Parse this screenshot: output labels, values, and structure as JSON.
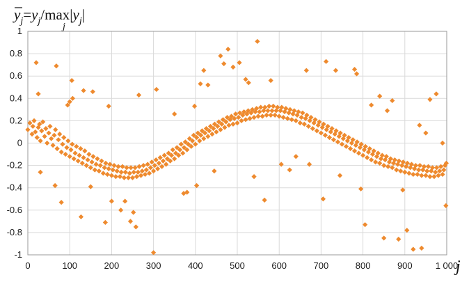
{
  "chart_data": {
    "type": "scatter",
    "title": "",
    "ylabel": "ȳ_j = y_j / max|y_j|  (max over j)",
    "ylabel_parts": {
      "ybar": "y",
      "sub_j": "j",
      "eq": "=",
      "y": "y",
      "slash": "/",
      "max": "max",
      "bar": "|",
      "y2": "y",
      "bar2": "|"
    },
    "xlabel": "j",
    "xlim": [
      0,
      1000
    ],
    "ylim": [
      -1,
      1
    ],
    "x_ticks": [
      0,
      100,
      200,
      300,
      400,
      500,
      600,
      700,
      800,
      900,
      1000
    ],
    "x_tick_labels": [
      "0",
      "100",
      "200",
      "300",
      "400",
      "500",
      "600",
      "700",
      "800",
      "900",
      "1 000"
    ],
    "y_ticks": [
      1,
      0.8,
      0.6,
      0.4,
      0.2,
      0,
      -0.2,
      -0.4,
      -0.6,
      -0.8,
      -1
    ],
    "y_tick_labels": [
      "1",
      "0.8",
      "0.6",
      "0.4",
      "0.2",
      "0",
      "-0.2",
      "-0.4",
      "-0.6",
      "-0.8",
      "-1"
    ],
    "grid": true,
    "marker": "diamond",
    "colors": {
      "marker": "#EE8A2E",
      "grid": "#d9d9d9",
      "frame": "#9a9a9a"
    },
    "points": [
      [
        0,
        0.12
      ],
      [
        5,
        0.18
      ],
      [
        10,
        0.08
      ],
      [
        12,
        0.15
      ],
      [
        15,
        0.2
      ],
      [
        18,
        0.1
      ],
      [
        22,
        0.05
      ],
      [
        25,
        0.14
      ],
      [
        28,
        0.17
      ],
      [
        30,
        0.02
      ],
      [
        33,
        0.11
      ],
      [
        36,
        0.19
      ],
      [
        40,
        0.06
      ],
      [
        43,
        0.13
      ],
      [
        46,
        0.0
      ],
      [
        50,
        0.09
      ],
      [
        53,
        0.15
      ],
      [
        56,
        0.04
      ],
      [
        60,
        -0.02
      ],
      [
        63,
        0.07
      ],
      [
        66,
        0.12
      ],
      [
        70,
        -0.05
      ],
      [
        73,
        0.03
      ],
      [
        76,
        0.08
      ],
      [
        80,
        -0.08
      ],
      [
        83,
        -0.01
      ],
      [
        86,
        0.05
      ],
      [
        90,
        -0.1
      ],
      [
        93,
        -0.04
      ],
      [
        96,
        0.02
      ],
      [
        100,
        -0.12
      ],
      [
        103,
        -0.06
      ],
      [
        106,
        -0.01
      ],
      [
        110,
        -0.14
      ],
      [
        113,
        -0.09
      ],
      [
        116,
        -0.03
      ],
      [
        120,
        -0.16
      ],
      [
        123,
        -0.11
      ],
      [
        126,
        -0.05
      ],
      [
        130,
        -0.18
      ],
      [
        133,
        -0.13
      ],
      [
        136,
        -0.07
      ],
      [
        140,
        -0.2
      ],
      [
        143,
        -0.15
      ],
      [
        146,
        -0.1
      ],
      [
        150,
        -0.22
      ],
      [
        153,
        -0.17
      ],
      [
        156,
        -0.12
      ],
      [
        160,
        -0.24
      ],
      [
        163,
        -0.19
      ],
      [
        166,
        -0.14
      ],
      [
        170,
        -0.25
      ],
      [
        173,
        -0.2
      ],
      [
        176,
        -0.16
      ],
      [
        180,
        -0.27
      ],
      [
        183,
        -0.22
      ],
      [
        186,
        -0.18
      ],
      [
        190,
        -0.28
      ],
      [
        193,
        -0.23
      ],
      [
        196,
        -0.19
      ],
      [
        200,
        -0.29
      ],
      [
        203,
        -0.24
      ],
      [
        206,
        -0.2
      ],
      [
        210,
        -0.3
      ],
      [
        213,
        -0.25
      ],
      [
        216,
        -0.21
      ],
      [
        220,
        -0.3
      ],
      [
        223,
        -0.26
      ],
      [
        226,
        -0.21
      ],
      [
        230,
        -0.31
      ],
      [
        233,
        -0.26
      ],
      [
        236,
        -0.22
      ],
      [
        240,
        -0.31
      ],
      [
        243,
        -0.27
      ],
      [
        246,
        -0.22
      ],
      [
        250,
        -0.31
      ],
      [
        253,
        -0.26
      ],
      [
        256,
        -0.22
      ],
      [
        260,
        -0.3
      ],
      [
        263,
        -0.26
      ],
      [
        266,
        -0.21
      ],
      [
        270,
        -0.29
      ],
      [
        273,
        -0.25
      ],
      [
        276,
        -0.2
      ],
      [
        280,
        -0.28
      ],
      [
        283,
        -0.24
      ],
      [
        286,
        -0.19
      ],
      [
        290,
        -0.27
      ],
      [
        293,
        -0.22
      ],
      [
        296,
        -0.17
      ],
      [
        300,
        -0.25
      ],
      [
        303,
        -0.2
      ],
      [
        306,
        -0.15
      ],
      [
        310,
        -0.23
      ],
      [
        313,
        -0.18
      ],
      [
        316,
        -0.13
      ],
      [
        320,
        -0.21
      ],
      [
        323,
        -0.16
      ],
      [
        326,
        -0.11
      ],
      [
        330,
        -0.19
      ],
      [
        333,
        -0.14
      ],
      [
        336,
        -0.09
      ],
      [
        340,
        -0.16
      ],
      [
        343,
        -0.11
      ],
      [
        346,
        -0.06
      ],
      [
        350,
        -0.14
      ],
      [
        353,
        -0.09
      ],
      [
        356,
        -0.04
      ],
      [
        360,
        -0.11
      ],
      [
        363,
        -0.06
      ],
      [
        366,
        -0.01
      ],
      [
        370,
        -0.09
      ],
      [
        373,
        -0.04
      ],
      [
        376,
        0.01
      ],
      [
        380,
        -0.06
      ],
      [
        383,
        -0.01
      ],
      [
        386,
        0.04
      ],
      [
        390,
        -0.03
      ],
      [
        393,
        0.02
      ],
      [
        396,
        0.07
      ],
      [
        400,
        -0.01
      ],
      [
        403,
        0.05
      ],
      [
        406,
        0.09
      ],
      [
        410,
        0.02
      ],
      [
        413,
        0.07
      ],
      [
        416,
        0.11
      ],
      [
        420,
        0.04
      ],
      [
        423,
        0.09
      ],
      [
        426,
        0.13
      ],
      [
        430,
        0.06
      ],
      [
        433,
        0.11
      ],
      [
        436,
        0.15
      ],
      [
        440,
        0.08
      ],
      [
        443,
        0.13
      ],
      [
        446,
        0.17
      ],
      [
        450,
        0.1
      ],
      [
        453,
        0.15
      ],
      [
        456,
        0.19
      ],
      [
        460,
        0.12
      ],
      [
        463,
        0.17
      ],
      [
        466,
        0.21
      ],
      [
        470,
        0.14
      ],
      [
        473,
        0.19
      ],
      [
        476,
        0.23
      ],
      [
        480,
        0.16
      ],
      [
        483,
        0.21
      ],
      [
        486,
        0.24
      ],
      [
        490,
        0.17
      ],
      [
        493,
        0.22
      ],
      [
        496,
        0.26
      ],
      [
        500,
        0.18
      ],
      [
        503,
        0.23
      ],
      [
        506,
        0.27
      ],
      [
        510,
        0.2
      ],
      [
        513,
        0.25
      ],
      [
        516,
        0.28
      ],
      [
        520,
        0.21
      ],
      [
        523,
        0.26
      ],
      [
        526,
        0.29
      ],
      [
        530,
        0.22
      ],
      [
        533,
        0.27
      ],
      [
        536,
        0.3
      ],
      [
        540,
        0.23
      ],
      [
        543,
        0.28
      ],
      [
        546,
        0.31
      ],
      [
        550,
        0.24
      ],
      [
        553,
        0.28
      ],
      [
        556,
        0.32
      ],
      [
        560,
        0.24
      ],
      [
        563,
        0.29
      ],
      [
        566,
        0.32
      ],
      [
        570,
        0.25
      ],
      [
        573,
        0.29
      ],
      [
        576,
        0.33
      ],
      [
        580,
        0.25
      ],
      [
        583,
        0.29
      ],
      [
        586,
        0.33
      ],
      [
        590,
        0.25
      ],
      [
        593,
        0.29
      ],
      [
        596,
        0.32
      ],
      [
        600,
        0.24
      ],
      [
        603,
        0.29
      ],
      [
        606,
        0.32
      ],
      [
        610,
        0.23
      ],
      [
        613,
        0.28
      ],
      [
        616,
        0.31
      ],
      [
        620,
        0.22
      ],
      [
        623,
        0.27
      ],
      [
        626,
        0.3
      ],
      [
        630,
        0.21
      ],
      [
        633,
        0.26
      ],
      [
        636,
        0.29
      ],
      [
        640,
        0.2
      ],
      [
        643,
        0.25
      ],
      [
        646,
        0.28
      ],
      [
        650,
        0.18
      ],
      [
        653,
        0.23
      ],
      [
        656,
        0.27
      ],
      [
        660,
        0.17
      ],
      [
        663,
        0.22
      ],
      [
        666,
        0.25
      ],
      [
        670,
        0.15
      ],
      [
        673,
        0.2
      ],
      [
        676,
        0.23
      ],
      [
        680,
        0.13
      ],
      [
        683,
        0.18
      ],
      [
        686,
        0.21
      ],
      [
        690,
        0.11
      ],
      [
        693,
        0.16
      ],
      [
        696,
        0.19
      ],
      [
        700,
        0.09
      ],
      [
        703,
        0.14
      ],
      [
        706,
        0.17
      ],
      [
        710,
        0.07
      ],
      [
        713,
        0.12
      ],
      [
        716,
        0.15
      ],
      [
        720,
        0.05
      ],
      [
        723,
        0.1
      ],
      [
        726,
        0.13
      ],
      [
        730,
        0.03
      ],
      [
        733,
        0.08
      ],
      [
        736,
        0.11
      ],
      [
        740,
        0.01
      ],
      [
        743,
        0.06
      ],
      [
        746,
        0.09
      ],
      [
        750,
        -0.01
      ],
      [
        753,
        0.04
      ],
      [
        756,
        0.07
      ],
      [
        760,
        -0.03
      ],
      [
        763,
        0.02
      ],
      [
        766,
        0.05
      ],
      [
        770,
        -0.05
      ],
      [
        773,
        0.0
      ],
      [
        776,
        0.03
      ],
      [
        780,
        -0.07
      ],
      [
        783,
        -0.02
      ],
      [
        786,
        0.01
      ],
      [
        790,
        -0.09
      ],
      [
        793,
        -0.04
      ],
      [
        796,
        -0.01
      ],
      [
        800,
        -0.11
      ],
      [
        803,
        -0.06
      ],
      [
        806,
        -0.03
      ],
      [
        810,
        -0.13
      ],
      [
        813,
        -0.08
      ],
      [
        816,
        -0.05
      ],
      [
        820,
        -0.15
      ],
      [
        823,
        -0.1
      ],
      [
        826,
        -0.07
      ],
      [
        830,
        -0.17
      ],
      [
        833,
        -0.12
      ],
      [
        836,
        -0.09
      ],
      [
        840,
        -0.18
      ],
      [
        843,
        -0.14
      ],
      [
        846,
        -0.11
      ],
      [
        850,
        -0.2
      ],
      [
        853,
        -0.15
      ],
      [
        856,
        -0.12
      ],
      [
        860,
        -0.21
      ],
      [
        863,
        -0.17
      ],
      [
        866,
        -0.14
      ],
      [
        870,
        -0.22
      ],
      [
        873,
        -0.18
      ],
      [
        876,
        -0.15
      ],
      [
        880,
        -0.24
      ],
      [
        883,
        -0.19
      ],
      [
        886,
        -0.16
      ],
      [
        890,
        -0.25
      ],
      [
        893,
        -0.2
      ],
      [
        896,
        -0.17
      ],
      [
        900,
        -0.26
      ],
      [
        903,
        -0.21
      ],
      [
        906,
        -0.18
      ],
      [
        910,
        -0.27
      ],
      [
        913,
        -0.22
      ],
      [
        916,
        -0.19
      ],
      [
        920,
        -0.28
      ],
      [
        923,
        -0.23
      ],
      [
        926,
        -0.2
      ],
      [
        930,
        -0.28
      ],
      [
        933,
        -0.24
      ],
      [
        936,
        -0.2
      ],
      [
        940,
        -0.29
      ],
      [
        943,
        -0.24
      ],
      [
        946,
        -0.21
      ],
      [
        950,
        -0.29
      ],
      [
        953,
        -0.25
      ],
      [
        956,
        -0.21
      ],
      [
        960,
        -0.3
      ],
      [
        963,
        -0.25
      ],
      [
        966,
        -0.22
      ],
      [
        970,
        -0.3
      ],
      [
        973,
        -0.26
      ],
      [
        976,
        -0.22
      ],
      [
        980,
        -0.29
      ],
      [
        983,
        -0.25
      ],
      [
        986,
        -0.21
      ],
      [
        990,
        -0.28
      ],
      [
        993,
        -0.24
      ],
      [
        996,
        -0.2
      ],
      [
        999,
        -0.18
      ],
      [
        20,
        0.72
      ],
      [
        25,
        0.44
      ],
      [
        30,
        -0.26
      ],
      [
        68,
        0.69
      ],
      [
        65,
        -0.38
      ],
      [
        80,
        -0.53
      ],
      [
        95,
        0.34
      ],
      [
        100,
        0.37
      ],
      [
        105,
        0.56
      ],
      [
        107,
        0.4
      ],
      [
        127,
        -0.66
      ],
      [
        133,
        0.47
      ],
      [
        155,
        0.46
      ],
      [
        150,
        -0.39
      ],
      [
        185,
        -0.71
      ],
      [
        193,
        0.33
      ],
      [
        200,
        -0.52
      ],
      [
        222,
        -0.6
      ],
      [
        232,
        -0.52
      ],
      [
        245,
        -0.7
      ],
      [
        252,
        -0.62
      ],
      [
        258,
        -0.75
      ],
      [
        265,
        0.43
      ],
      [
        300,
        -0.98
      ],
      [
        307,
        0.48
      ],
      [
        350,
        0.26
      ],
      [
        372,
        -0.45
      ],
      [
        380,
        -0.44
      ],
      [
        398,
        0.33
      ],
      [
        403,
        -0.38
      ],
      [
        412,
        0.53
      ],
      [
        420,
        0.65
      ],
      [
        430,
        0.52
      ],
      [
        445,
        -0.25
      ],
      [
        460,
        0.78
      ],
      [
        468,
        0.71
      ],
      [
        478,
        0.84
      ],
      [
        490,
        0.68
      ],
      [
        505,
        0.72
      ],
      [
        520,
        0.57
      ],
      [
        527,
        0.54
      ],
      [
        540,
        -0.3
      ],
      [
        548,
        0.91
      ],
      [
        565,
        -0.51
      ],
      [
        580,
        0.56
      ],
      [
        605,
        -0.19
      ],
      [
        625,
        -0.24
      ],
      [
        640,
        -0.12
      ],
      [
        665,
        0.65
      ],
      [
        672,
        -0.19
      ],
      [
        705,
        -0.5
      ],
      [
        712,
        0.73
      ],
      [
        735,
        0.65
      ],
      [
        745,
        -0.29
      ],
      [
        780,
        0.66
      ],
      [
        785,
        0.62
      ],
      [
        795,
        -0.41
      ],
      [
        805,
        -0.73
      ],
      [
        820,
        0.34
      ],
      [
        840,
        0.42
      ],
      [
        850,
        -0.85
      ],
      [
        858,
        0.29
      ],
      [
        870,
        0.38
      ],
      [
        885,
        -0.86
      ],
      [
        895,
        -0.42
      ],
      [
        905,
        -0.78
      ],
      [
        920,
        -0.95
      ],
      [
        935,
        0.16
      ],
      [
        940,
        -0.94
      ],
      [
        950,
        0.09
      ],
      [
        960,
        0.39
      ],
      [
        975,
        0.44
      ],
      [
        990,
        0.0
      ],
      [
        998,
        -0.56
      ]
    ]
  }
}
